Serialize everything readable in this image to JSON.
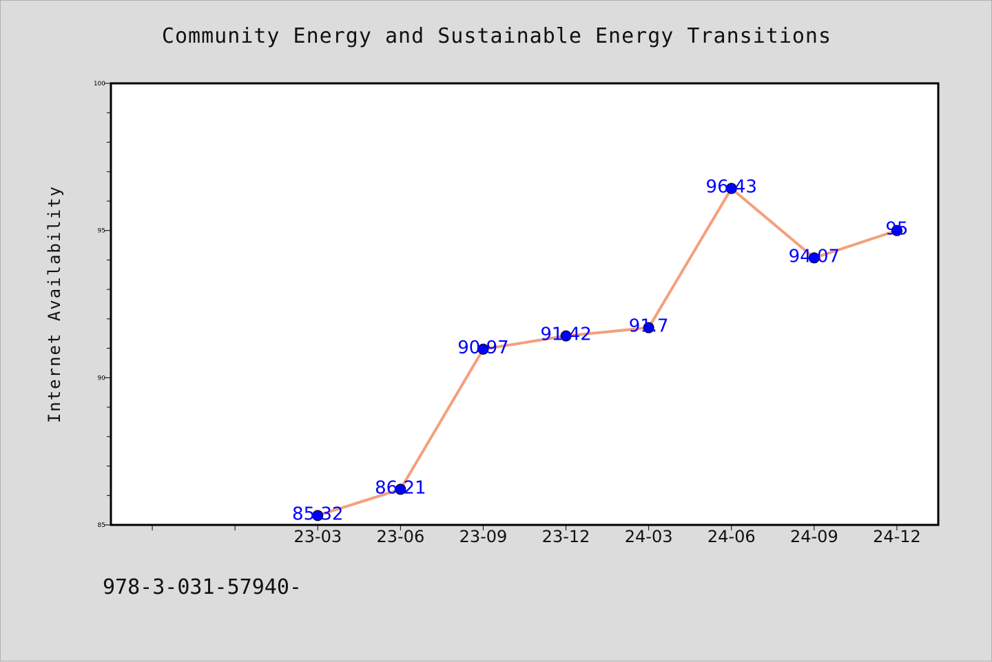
{
  "chart_data": {
    "type": "line",
    "title": "Community Energy and Sustainable Energy Transitions",
    "xlabel": "",
    "ylabel": "Internet Availability",
    "categories": [
      "23-03",
      "23-06",
      "23-09",
      "23-12",
      "24-03",
      "24-06",
      "24-09",
      "24-12"
    ],
    "values": [
      85.32,
      86.21,
      90.97,
      91.42,
      91.7,
      96.43,
      94.07,
      95
    ],
    "data_labels": [
      "85.32",
      "86.21",
      "90.97",
      "91.42",
      "91.7",
      "96.43",
      "94.07",
      "95"
    ],
    "ylim": [
      85,
      100
    ],
    "yticks": [
      "85",
      "90",
      "95",
      "100"
    ],
    "grid": false,
    "line_color": "#f4a07c",
    "marker_color": "#0000ff",
    "label_color": "#0000ff"
  },
  "footer_text": "978-3-031-57940-"
}
